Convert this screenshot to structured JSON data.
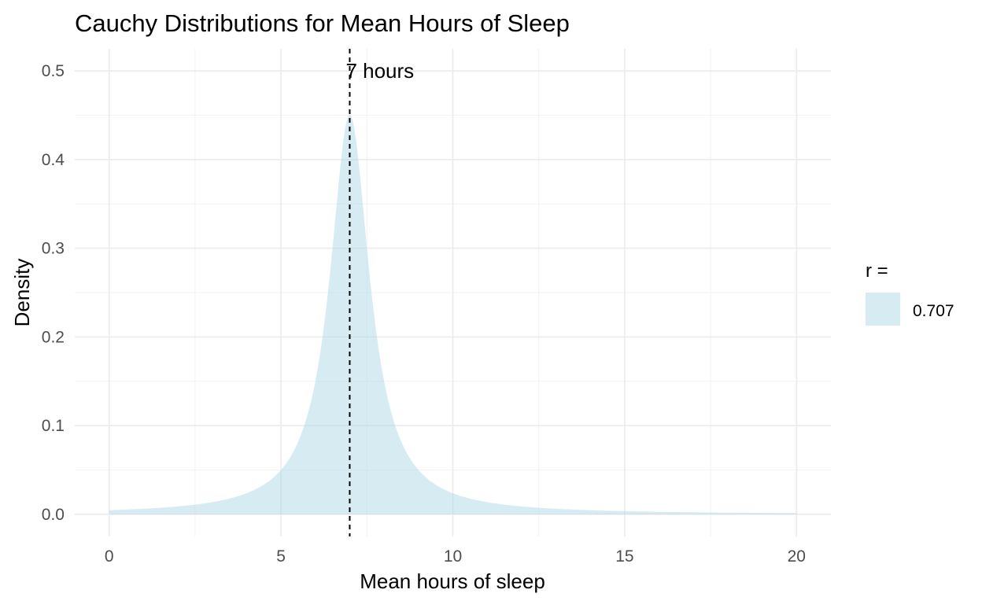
{
  "chart_data": {
    "type": "area",
    "title": "Cauchy Distributions for Mean Hours of Sleep",
    "xlabel": "Mean hours of sleep",
    "ylabel": "Density",
    "xlim": [
      -1,
      21
    ],
    "ylim": [
      -0.025,
      0.525
    ],
    "x_ticks": [
      0,
      5,
      10,
      15,
      20
    ],
    "x_tick_labels": [
      "0",
      "5",
      "10",
      "15",
      "20"
    ],
    "y_ticks": [
      0.0,
      0.1,
      0.2,
      0.3,
      0.4,
      0.5
    ],
    "y_tick_labels": [
      "0.0",
      "0.1",
      "0.2",
      "0.3",
      "0.4",
      "0.5"
    ],
    "grid": true,
    "legend": {
      "title": "r =",
      "position": "right",
      "entries": [
        {
          "label": "0.707",
          "color": "#add8e6"
        }
      ]
    },
    "series": [
      {
        "name": "0.707",
        "distribution": "cauchy",
        "location": 7,
        "scale": 0.707,
        "x_range": [
          0,
          20
        ],
        "fill": "#add8e6",
        "fill_opacity": 0.5,
        "x": [
          0,
          1,
          2,
          3,
          4,
          5,
          5.5,
          6,
          6.5,
          7,
          7.5,
          8,
          8.5,
          9,
          10,
          11,
          12,
          13,
          14,
          15,
          16,
          17,
          18,
          19,
          20
        ],
        "y": [
          0.0045,
          0.0061,
          0.0088,
          0.0136,
          0.0238,
          0.0506,
          0.0827,
          0.1507,
          0.3029,
          0.4502,
          0.3029,
          0.1507,
          0.0827,
          0.0506,
          0.0238,
          0.0136,
          0.0088,
          0.0061,
          0.0045,
          0.0035,
          0.0028,
          0.0022,
          0.0019,
          0.0016,
          0.0013
        ]
      }
    ],
    "annotations": [
      {
        "type": "vline",
        "x": 7,
        "linetype": "dashed",
        "color": "#000000"
      },
      {
        "type": "text",
        "x": 7,
        "y": 0.5,
        "text": "7 hours"
      }
    ]
  }
}
